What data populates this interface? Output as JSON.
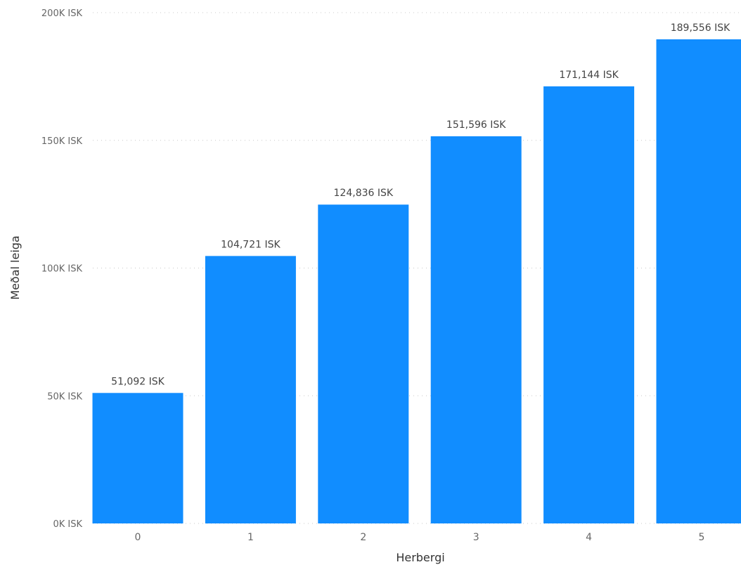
{
  "chart_data": {
    "type": "bar",
    "title": "",
    "xlabel": "Herbergi",
    "ylabel": "Meðal leiga",
    "categories": [
      "0",
      "1",
      "2",
      "3",
      "4",
      "5"
    ],
    "values": [
      51092,
      104721,
      124836,
      151596,
      171144,
      189556
    ],
    "data_labels": [
      "51,092 ISK",
      "104,721 ISK",
      "124,836 ISK",
      "151,596 ISK",
      "171,144 ISK",
      "189,556 ISK"
    ],
    "ylim": [
      0,
      200000
    ],
    "yticks": [
      {
        "value": 0,
        "label": "0K ISK"
      },
      {
        "value": 50000,
        "label": "50K ISK"
      },
      {
        "value": 100000,
        "label": "100K ISK"
      },
      {
        "value": 150000,
        "label": "150K ISK"
      },
      {
        "value": 200000,
        "label": "200K ISK"
      }
    ],
    "grid": true,
    "bar_color": "#118dff"
  }
}
